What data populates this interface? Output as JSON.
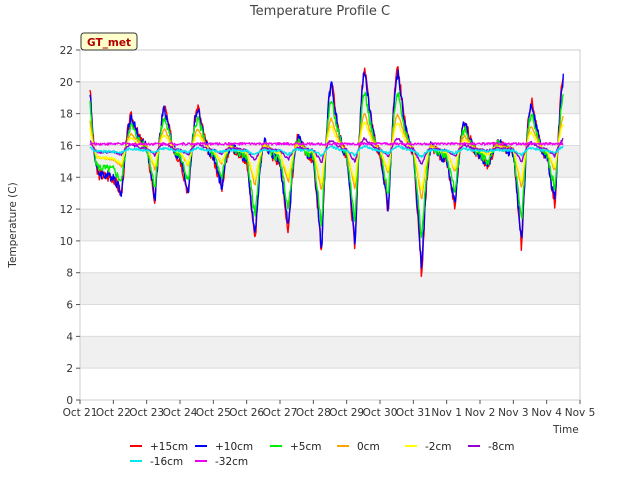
{
  "chart_data": {
    "type": "line",
    "title": "Temperature Profile C",
    "xlabel": "Time",
    "ylabel": "Temperature (C)",
    "ylim": [
      0,
      22
    ],
    "yticks": [
      0,
      2,
      4,
      6,
      8,
      10,
      12,
      14,
      16,
      18,
      20,
      22
    ],
    "xlim": [
      0,
      15
    ],
    "xtick_labels": [
      "Oct 21",
      "Oct 22",
      "Oct 23",
      "Oct 24",
      "Oct 25",
      "Oct 26",
      "Oct 27",
      "Oct 28",
      "Oct 29",
      "Oct 30",
      "Oct 31",
      "Nov 1",
      "Nov 2",
      "Nov 3",
      "Nov 4",
      "Nov 5"
    ],
    "x_range_data": [
      0.3,
      14.5
    ],
    "grid": "horizontal-bands",
    "legend_placement": "bottom",
    "badge": "GT_met",
    "series": [
      {
        "name": "+15cm",
        "color": "#ff0000",
        "amp": 1.0,
        "base": 15.8,
        "values": [
          [
            14.2,
            21.6,
            14.0
          ],
          [
            17.8,
            12.9,
            16.0
          ],
          [
            18.4,
            12.4,
            15.2
          ],
          [
            18.4,
            12.9,
            15.3
          ],
          [
            16.0,
            13.3,
            15.2
          ],
          [
            16.2,
            9.9,
            15.0
          ],
          [
            16.5,
            10.4,
            15.2
          ],
          [
            20.0,
            9.1,
            15.5
          ],
          [
            20.7,
            9.4,
            15.6
          ],
          [
            20.7,
            11.7,
            15.7
          ],
          [
            16.0,
            7.8,
            15.2
          ],
          [
            17.5,
            12.0,
            15.4
          ],
          [
            16.2,
            14.6,
            15.6
          ],
          [
            18.8,
            9.5,
            15.4
          ],
          [
            20.8,
            12.2,
            15.3
          ]
        ]
      },
      {
        "name": "+10cm",
        "color": "#0000ff",
        "amp": 0.95,
        "base": 15.8,
        "values": []
      },
      {
        "name": "+5cm",
        "color": "#00ee00",
        "amp": 0.72,
        "base": 15.8,
        "values": []
      },
      {
        "name": "0cm",
        "color": "#ffa500",
        "amp": 0.42,
        "base": 15.9,
        "values": []
      },
      {
        "name": "-2cm",
        "color": "#ffff00",
        "amp": 0.34,
        "base": 15.8,
        "values": []
      },
      {
        "name": "-8cm",
        "color": "#9400d3",
        "amp": 0.13,
        "base": 15.8,
        "values": []
      },
      {
        "name": "-16cm",
        "color": "#00e5ee",
        "amp": 0.05,
        "base": 15.7,
        "values": []
      },
      {
        "name": "-32cm",
        "color": "#ee00ee",
        "amp": 0.0,
        "base": 16.1,
        "values": []
      }
    ]
  }
}
